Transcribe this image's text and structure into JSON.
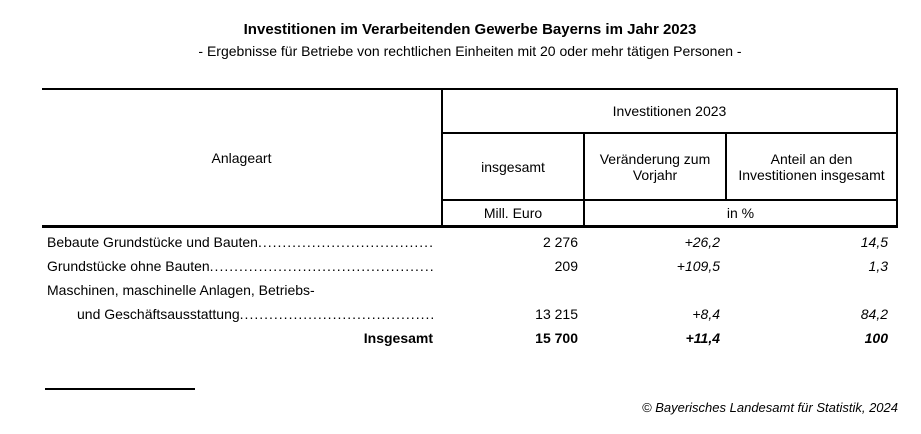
{
  "header": {
    "title": "Investitionen im Verarbeitenden Gewerbe Bayerns im Jahr 2023",
    "subtitle": "- Ergebnisse für Betriebe von rechtlichen Einheiten mit 20 oder mehr tätigen Personen -"
  },
  "table": {
    "row_dimension_header": "Anlageart",
    "group_header": "Investitionen 2023",
    "col_headers": {
      "total": "insgesamt",
      "change": "Veränderung zum Vorjahr",
      "share": "Anteil an den Investitionen insgesamt"
    },
    "units": {
      "total": "Mill. Euro",
      "percent": "in %"
    },
    "rows": [
      {
        "label": "Bebaute Grundstücke und Bauten",
        "total": "2 276",
        "change": "+26,2",
        "share": "14,5"
      },
      {
        "label": "Grundstücke ohne Bauten",
        "total": "209",
        "change": "+109,5",
        "share": "1,3"
      },
      {
        "label_line1": "Maschinen, maschinelle Anlagen, Betriebs-",
        "label_line2": "und Geschäftsausstattung",
        "total": "13 215",
        "change": "+8,4",
        "share": "84,2"
      },
      {
        "label": "Insgesamt",
        "total": "15 700",
        "change": "+11,4",
        "share": "100"
      }
    ]
  },
  "footer": {
    "copyright": "© Bayerisches Landesamt für Statistik, 2024"
  },
  "chart_data": {
    "type": "table",
    "title": "Investitionen im Verarbeitenden Gewerbe Bayerns im Jahr 2023",
    "columns": [
      "Anlageart",
      "insgesamt (Mill. Euro)",
      "Veränderung zum Vorjahr (in %)",
      "Anteil an den Investitionen insgesamt (in %)"
    ],
    "rows": [
      [
        "Bebaute Grundstücke und Bauten",
        "2 276",
        "+26,2",
        "14,5"
      ],
      [
        "Grundstücke ohne Bauten",
        "209",
        "+109,5",
        "1,3"
      ],
      [
        "Maschinen, maschinelle Anlagen, Betriebs- und Geschäftsausstattung",
        "13 215",
        "+8,4",
        "84,2"
      ],
      [
        "Insgesamt",
        "15 700",
        "+11,4",
        "100"
      ]
    ]
  }
}
